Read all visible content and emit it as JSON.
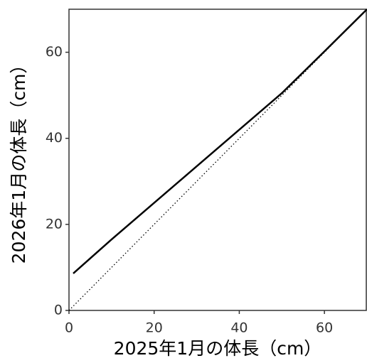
{
  "chart_data": {
    "type": "line",
    "xlabel": "2025年1月の体長（cm）",
    "ylabel": "2026年1月の体長（cm）",
    "xlim": [
      0,
      70
    ],
    "ylim": [
      0,
      70
    ],
    "xticks": [
      0,
      20,
      40,
      60
    ],
    "yticks": [
      0,
      20,
      40,
      60
    ],
    "series": [
      {
        "x": [
          1,
          10,
          20,
          30,
          40,
          50,
          60,
          70
        ],
        "values": [
          8.6,
          16.5,
          25,
          33.5,
          42,
          50.5,
          60.2,
          70
        ],
        "color": "#000000",
        "linestyle": "solid"
      },
      {
        "x": [
          0,
          70
        ],
        "values": [
          0,
          70
        ],
        "color": "#000000",
        "linestyle": "dotted"
      }
    ]
  }
}
